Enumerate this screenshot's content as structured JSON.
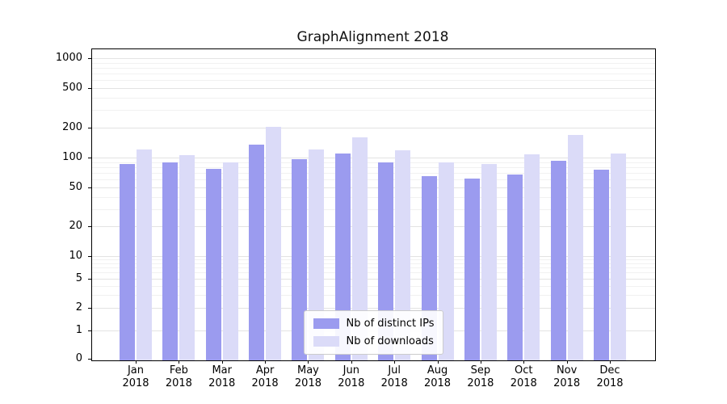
{
  "chart_data": {
    "type": "bar",
    "title": "GraphAlignment 2018",
    "categories": [
      "Jan",
      "Feb",
      "Mar",
      "Apr",
      "May",
      "Jun",
      "Jul",
      "Aug",
      "Sep",
      "Oct",
      "Nov",
      "Dec"
    ],
    "year": "2018",
    "yscale": "symlog",
    "yticks": [
      0,
      1,
      2,
      5,
      10,
      20,
      50,
      100,
      200,
      500,
      1000
    ],
    "ylim": [
      0,
      1300
    ],
    "grid": "both",
    "legend_position": "lower center",
    "series": [
      {
        "name": "Nb of distinct IPs",
        "color": "#9b9bef",
        "values": [
          90,
          93,
          80,
          140,
          100,
          115,
          92,
          67,
          63,
          70,
          96,
          78
        ]
      },
      {
        "name": "Nb of downloads",
        "color": "#dbdbf8",
        "values": [
          125,
          110,
          93,
          210,
          125,
          165,
          122,
          92,
          90,
          112,
          175,
          113
        ]
      }
    ]
  }
}
